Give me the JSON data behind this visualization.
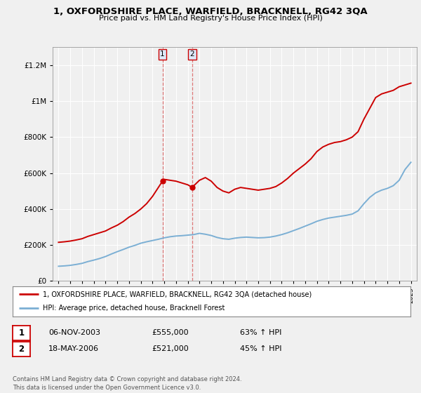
{
  "title": "1, OXFORDSHIRE PLACE, WARFIELD, BRACKNELL, RG42 3QA",
  "subtitle": "Price paid vs. HM Land Registry's House Price Index (HPI)",
  "legend_line1": "1, OXFORDSHIRE PLACE, WARFIELD, BRACKNELL, RG42 3QA (detached house)",
  "legend_line2": "HPI: Average price, detached house, Bracknell Forest",
  "sale1_label": "1",
  "sale1_date": "06-NOV-2003",
  "sale1_price": "£555,000",
  "sale1_hpi": "63% ↑ HPI",
  "sale1_year": 2003.85,
  "sale1_value": 555000,
  "sale2_label": "2",
  "sale2_date": "18-MAY-2006",
  "sale2_price": "£521,000",
  "sale2_hpi": "45% ↑ HPI",
  "sale2_year": 2006.38,
  "sale2_value": 521000,
  "footer": "Contains HM Land Registry data © Crown copyright and database right 2024.\nThis data is licensed under the Open Government Licence v3.0.",
  "red_color": "#cc0000",
  "blue_color": "#7bafd4",
  "vline_color": "#cc0000",
  "background_color": "#f0f0f0",
  "plot_bg": "#f0f0f0",
  "grid_color": "#ffffff",
  "ylim": [
    0,
    1300000
  ],
  "xlim_start": 1994.5,
  "xlim_end": 2025.5,
  "years_red": [
    1995,
    1995.5,
    1996,
    1996.5,
    1997,
    1997.5,
    1998,
    1998.5,
    1999,
    1999.5,
    2000,
    2000.5,
    2001,
    2001.5,
    2002,
    2002.5,
    2003,
    2003.5,
    2003.85,
    2004,
    2004.5,
    2005,
    2005.5,
    2006,
    2006.38,
    2007,
    2007.5,
    2008,
    2008.5,
    2009,
    2009.5,
    2010,
    2010.5,
    2011,
    2011.5,
    2012,
    2012.5,
    2013,
    2013.5,
    2014,
    2014.5,
    2015,
    2015.5,
    2016,
    2016.5,
    2017,
    2017.5,
    2018,
    2018.5,
    2019,
    2019.5,
    2020,
    2020.5,
    2021,
    2021.5,
    2022,
    2022.5,
    2023,
    2023.5,
    2024,
    2024.5,
    2025
  ],
  "values_red": [
    215000,
    218000,
    222000,
    228000,
    235000,
    248000,
    258000,
    268000,
    278000,
    295000,
    310000,
    330000,
    355000,
    375000,
    400000,
    430000,
    470000,
    520000,
    555000,
    565000,
    560000,
    555000,
    545000,
    535000,
    521000,
    560000,
    575000,
    555000,
    520000,
    500000,
    490000,
    510000,
    520000,
    515000,
    510000,
    505000,
    510000,
    515000,
    525000,
    545000,
    570000,
    600000,
    625000,
    650000,
    680000,
    720000,
    745000,
    760000,
    770000,
    775000,
    785000,
    800000,
    830000,
    900000,
    960000,
    1020000,
    1040000,
    1050000,
    1060000,
    1080000,
    1090000,
    1100000
  ],
  "years_blue": [
    1995,
    1995.5,
    1996,
    1996.5,
    1997,
    1997.5,
    1998,
    1998.5,
    1999,
    1999.5,
    2000,
    2000.5,
    2001,
    2001.5,
    2002,
    2002.5,
    2003,
    2003.5,
    2004,
    2004.5,
    2005,
    2005.5,
    2006,
    2006.5,
    2007,
    2007.5,
    2008,
    2008.5,
    2009,
    2009.5,
    2010,
    2010.5,
    2011,
    2011.5,
    2012,
    2012.5,
    2013,
    2013.5,
    2014,
    2014.5,
    2015,
    2015.5,
    2016,
    2016.5,
    2017,
    2017.5,
    2018,
    2018.5,
    2019,
    2019.5,
    2020,
    2020.5,
    2021,
    2021.5,
    2022,
    2022.5,
    2023,
    2023.5,
    2024,
    2024.5,
    2025
  ],
  "values_blue": [
    82000,
    84000,
    87000,
    92000,
    98000,
    108000,
    116000,
    125000,
    136000,
    150000,
    163000,
    175000,
    188000,
    198000,
    210000,
    218000,
    225000,
    232000,
    240000,
    246000,
    250000,
    252000,
    255000,
    258000,
    265000,
    260000,
    253000,
    242000,
    235000,
    232000,
    238000,
    242000,
    244000,
    242000,
    240000,
    241000,
    244000,
    250000,
    258000,
    268000,
    280000,
    292000,
    305000,
    318000,
    332000,
    342000,
    350000,
    355000,
    360000,
    365000,
    372000,
    390000,
    430000,
    465000,
    490000,
    505000,
    515000,
    530000,
    560000,
    620000,
    660000
  ]
}
